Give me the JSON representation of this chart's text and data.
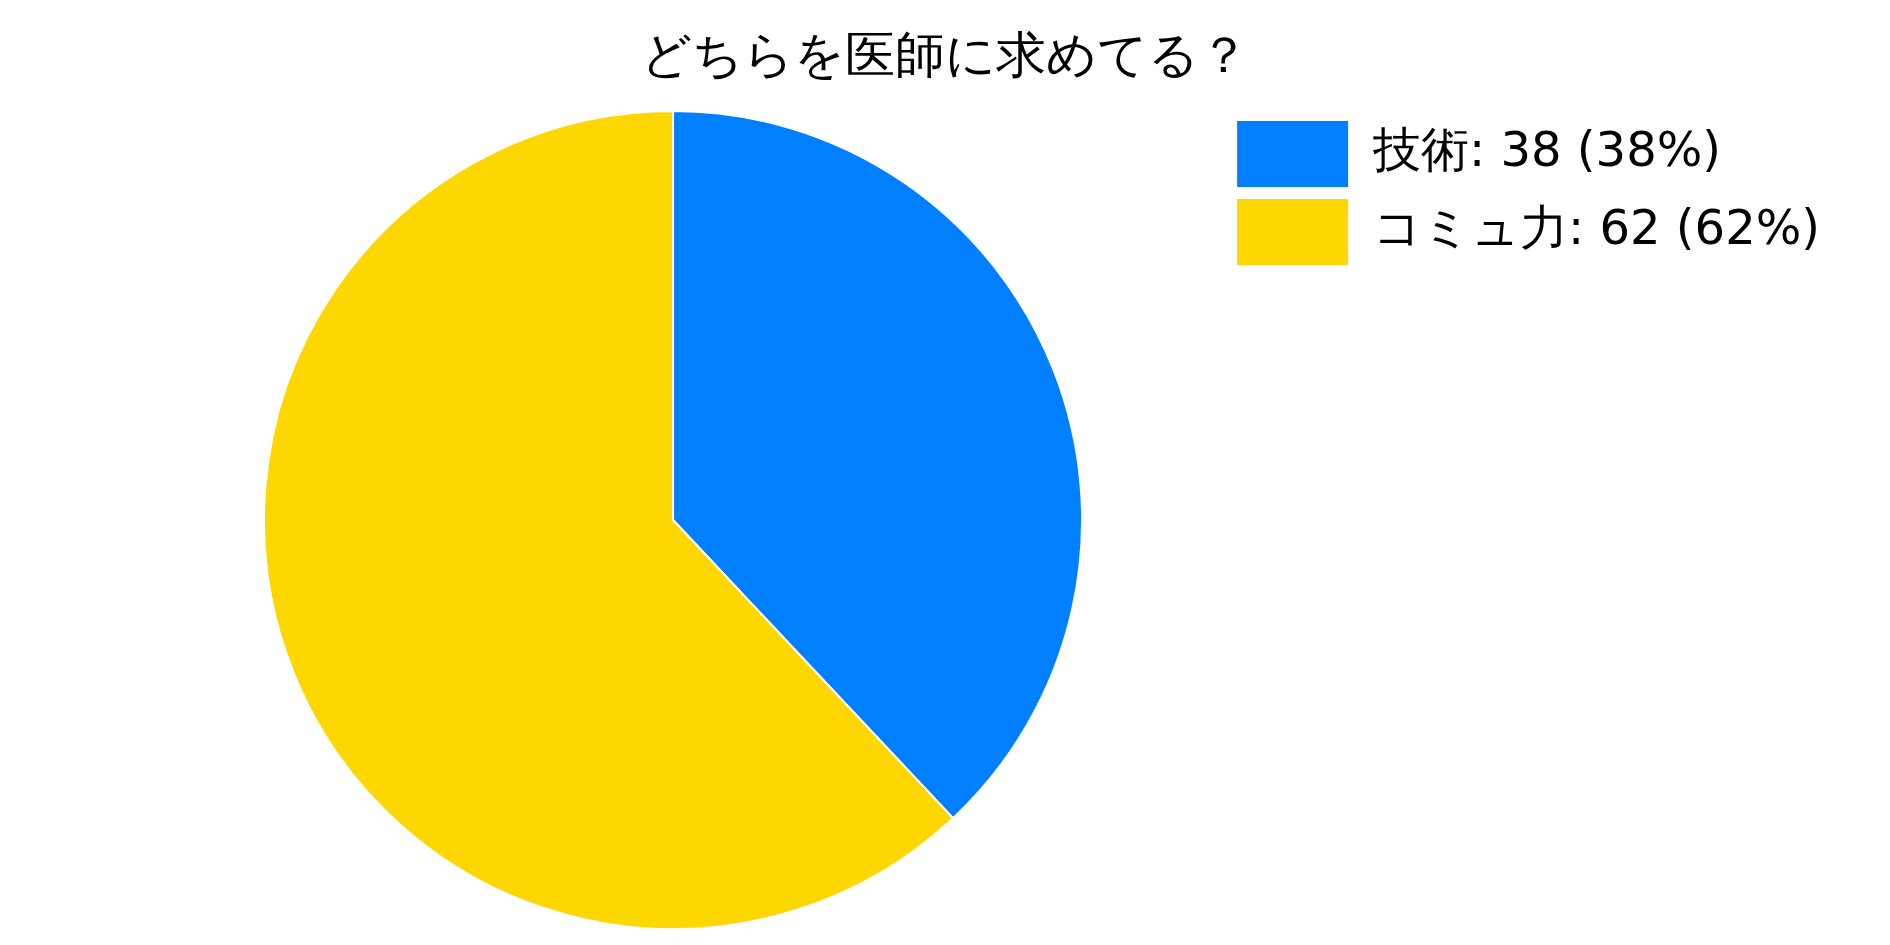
{
  "chart_data": {
    "type": "pie",
    "title": "どちらを医師に求めてる？",
    "categories": [
      "技術",
      "コミュ力"
    ],
    "values": [
      38,
      62
    ],
    "value_labels": [
      "38 (38%)",
      "62 (62%)"
    ],
    "colors": [
      "#0080ff",
      "#ffd700"
    ],
    "legend": "top right"
  }
}
